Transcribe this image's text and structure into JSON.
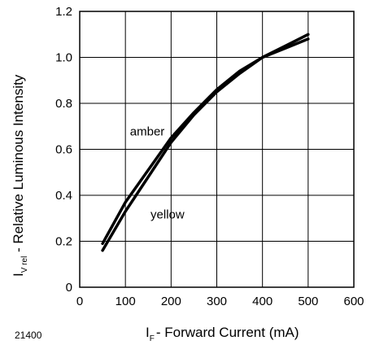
{
  "chart_data": {
    "type": "line",
    "xlabel": {
      "main": "I",
      "sub": "F",
      "rest": "- Forward Current (mA)"
    },
    "ylabel": {
      "main": "I",
      "sub": "V rel",
      "rest": " - Relative Luminous Intensity"
    },
    "xlim": [
      0,
      600
    ],
    "ylim": [
      0,
      1.2
    ],
    "x_ticks": [
      0,
      100,
      200,
      300,
      400,
      500,
      600
    ],
    "y_ticks": [
      0,
      0.2,
      0.4,
      0.6,
      0.8,
      1.0,
      1.2
    ],
    "x_tick_labels": [
      "0",
      "100",
      "200",
      "300",
      "400",
      "500",
      "600"
    ],
    "y_tick_labels": [
      "0",
      "0.2",
      "0.4",
      "0.6",
      "0.8",
      "1.0",
      "1.2"
    ],
    "grid": true,
    "series": [
      {
        "name": "amber",
        "x": [
          50,
          100,
          150,
          200,
          250,
          300,
          350,
          400,
          450,
          500
        ],
        "y": [
          0.19,
          0.37,
          0.51,
          0.65,
          0.76,
          0.86,
          0.94,
          1.0,
          1.05,
          1.1
        ]
      },
      {
        "name": "yellow",
        "x": [
          50,
          100,
          150,
          200,
          250,
          300,
          350,
          400,
          450,
          500
        ],
        "y": [
          0.16,
          0.33,
          0.48,
          0.63,
          0.75,
          0.85,
          0.93,
          1.0,
          1.04,
          1.08
        ]
      }
    ],
    "annotations": [
      {
        "text": "amber",
        "x": 110,
        "y": 0.66
      },
      {
        "text": "yellow",
        "x": 155,
        "y": 0.3
      }
    ],
    "figure_number": "21400"
  }
}
